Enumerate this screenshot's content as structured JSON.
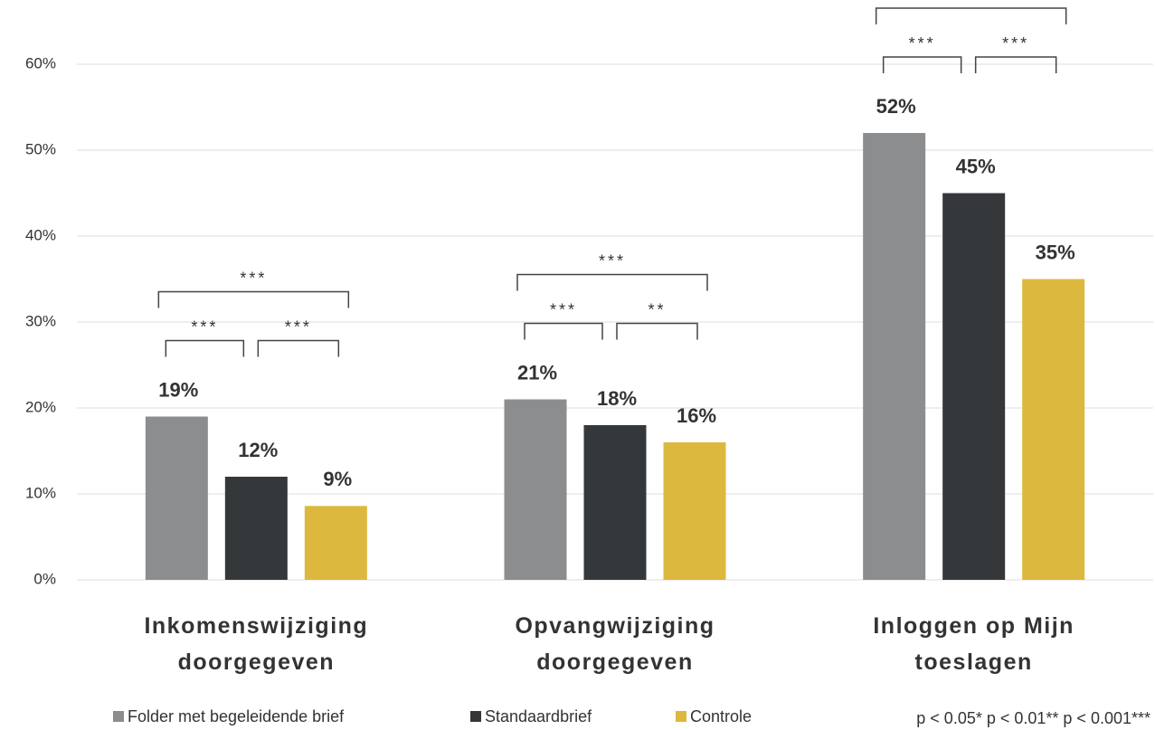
{
  "chart_data": {
    "type": "bar",
    "categories": [
      "Inkomenswijziging doorgegeven",
      "Opvangwijziging doorgegeven",
      "Inloggen op Mijn toeslagen"
    ],
    "series": [
      {
        "name": "Folder met begeleidende brief",
        "color": "#8c8d8f",
        "values": [
          19,
          21,
          52
        ],
        "value_labels": [
          "19%",
          "21%",
          "52%"
        ]
      },
      {
        "name": "Standaardbrief",
        "color": "#35383b",
        "values": [
          12,
          18,
          45
        ],
        "value_labels": [
          "12%",
          "18%",
          "45%"
        ]
      },
      {
        "name": "Controle",
        "color": "#dcb83f",
        "values": [
          8.6,
          16,
          35
        ],
        "value_labels": [
          "9%",
          "16%",
          "35%"
        ]
      }
    ],
    "ylim": [
      0,
      60
    ],
    "yticks": [
      {
        "value": 0,
        "label": "0%"
      },
      {
        "value": 10,
        "label": "10%"
      },
      {
        "value": 20,
        "label": "20%"
      },
      {
        "value": 30,
        "label": "30%"
      },
      {
        "value": 40,
        "label": "40%"
      },
      {
        "value": 50,
        "label": "50%"
      },
      {
        "value": 60,
        "label": "60%"
      }
    ],
    "grid": true,
    "significance": [
      {
        "category": 0,
        "series": [
          0,
          2
        ],
        "label": "***"
      },
      {
        "category": 0,
        "series": [
          0,
          1
        ],
        "label": "***"
      },
      {
        "category": 0,
        "series": [
          1,
          2
        ],
        "label": "***"
      },
      {
        "category": 1,
        "series": [
          0,
          2
        ],
        "label": "***"
      },
      {
        "category": 1,
        "series": [
          0,
          1
        ],
        "label": "***"
      },
      {
        "category": 1,
        "series": [
          1,
          2
        ],
        "label": "**"
      },
      {
        "category": 2,
        "series": [
          0,
          2
        ],
        "label": "***"
      },
      {
        "category": 2,
        "series": [
          0,
          1
        ],
        "label": "***"
      },
      {
        "category": 2,
        "series": [
          1,
          2
        ],
        "label": "***"
      }
    ],
    "note": "p < 0.05* p < 0.01** p < 0.001***"
  }
}
